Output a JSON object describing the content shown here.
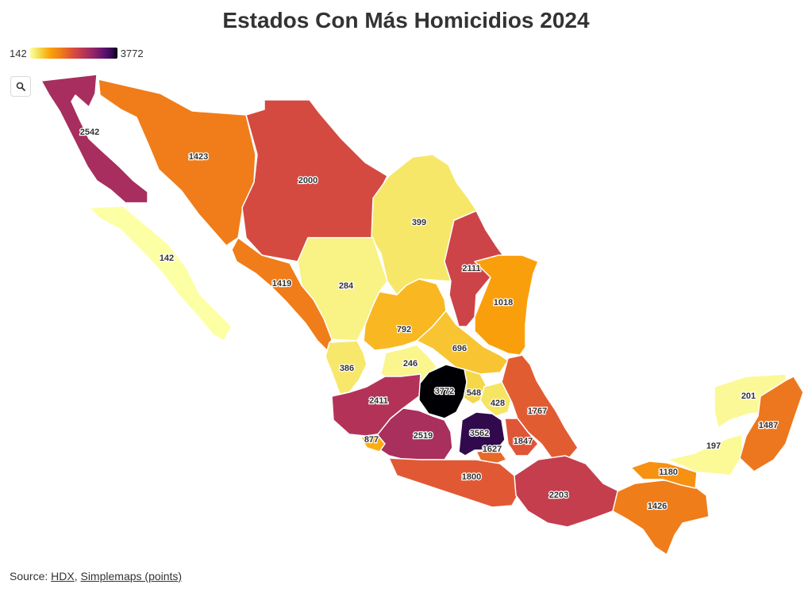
{
  "title": "Estados Con Más Homicidios 2024",
  "legend": {
    "min_label": "142",
    "max_label": "3772",
    "min": 142,
    "max": 3772
  },
  "source": {
    "prefix": "Source: ",
    "link1": "HDX",
    "sep": ", ",
    "link2": "Simplemaps (points)"
  },
  "chart_data": {
    "type": "choropleth",
    "values": [
      {
        "label": "2542",
        "value": 2542
      },
      {
        "label": "1423",
        "value": 1423
      },
      {
        "label": "2000",
        "value": 2000
      },
      {
        "label": "142",
        "value": 142
      },
      {
        "label": "399",
        "value": 399
      },
      {
        "label": "2111",
        "value": 2111
      },
      {
        "label": "1419",
        "value": 1419
      },
      {
        "label": "284",
        "value": 284
      },
      {
        "label": "1018",
        "value": 1018
      },
      {
        "label": "792",
        "value": 792
      },
      {
        "label": "696",
        "value": 696
      },
      {
        "label": "386",
        "value": 386
      },
      {
        "label": "246",
        "value": 246
      },
      {
        "label": "3772",
        "value": 3772
      },
      {
        "label": "548",
        "value": 548
      },
      {
        "label": "2411",
        "value": 2411
      },
      {
        "label": "428",
        "value": 428
      },
      {
        "label": "1767",
        "value": 1767
      },
      {
        "label": "3562",
        "value": 3562
      },
      {
        "label": "2519",
        "value": 2519
      },
      {
        "label": "877",
        "value": 877
      },
      {
        "label": "1627",
        "value": 1627
      },
      {
        "label": "1847",
        "value": 1847
      },
      {
        "label": "1800",
        "value": 1800
      },
      {
        "label": "2203",
        "value": 2203
      },
      {
        "label": "1426",
        "value": 1426
      },
      {
        "label": "1180",
        "value": 1180
      },
      {
        "label": "197",
        "value": 197
      },
      {
        "label": "201",
        "value": 201
      },
      {
        "label": "1487",
        "value": 1487
      }
    ]
  }
}
